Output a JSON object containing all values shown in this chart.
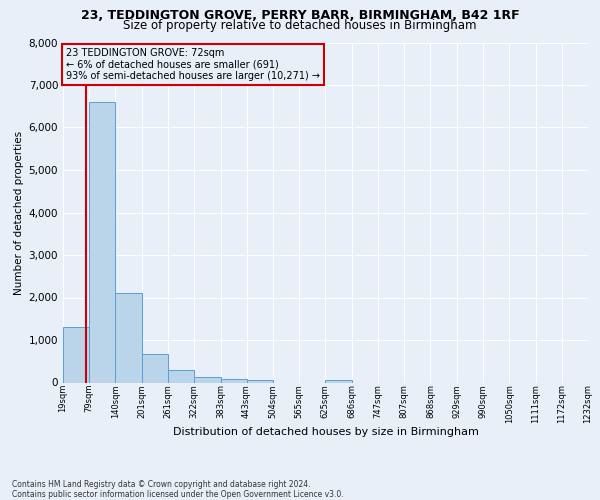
{
  "title1": "23, TEDDINGTON GROVE, PERRY BARR, BIRMINGHAM, B42 1RF",
  "title2": "Size of property relative to detached houses in Birmingham",
  "xlabel": "Distribution of detached houses by size in Birmingham",
  "ylabel": "Number of detached properties",
  "footnote1": "Contains HM Land Registry data © Crown copyright and database right 2024.",
  "footnote2": "Contains public sector information licensed under the Open Government Licence v3.0.",
  "annotation_line1": "23 TEDDINGTON GROVE: 72sqm",
  "annotation_line2": "← 6% of detached houses are smaller (691)",
  "annotation_line3": "93% of semi-detached houses are larger (10,271) →",
  "property_size": 72,
  "bin_edges": [
    19,
    79,
    140,
    201,
    261,
    322,
    383,
    443,
    504,
    565,
    625,
    686,
    747,
    807,
    868,
    929,
    990,
    1050,
    1111,
    1172,
    1232
  ],
  "bin_counts": [
    1300,
    6600,
    2100,
    680,
    290,
    130,
    90,
    60,
    0,
    0,
    60,
    0,
    0,
    0,
    0,
    0,
    0,
    0,
    0,
    0
  ],
  "bar_facecolor": "#bad4ea",
  "bar_edgecolor": "#5a9fd4",
  "marker_line_color": "#cc0000",
  "annotation_box_edgecolor": "#cc0000",
  "background_color": "#e8eff8",
  "grid_color": "#ffffff",
  "ylim_max": 8000,
  "yticks": [
    0,
    1000,
    2000,
    3000,
    4000,
    5000,
    6000,
    7000,
    8000
  ],
  "title1_fontsize": 9.0,
  "title2_fontsize": 8.5,
  "xlabel_fontsize": 8.0,
  "ylabel_fontsize": 7.5,
  "ytick_fontsize": 7.5,
  "xtick_fontsize": 6.0,
  "footnote_fontsize": 5.5,
  "annotation_fontsize": 7.0
}
